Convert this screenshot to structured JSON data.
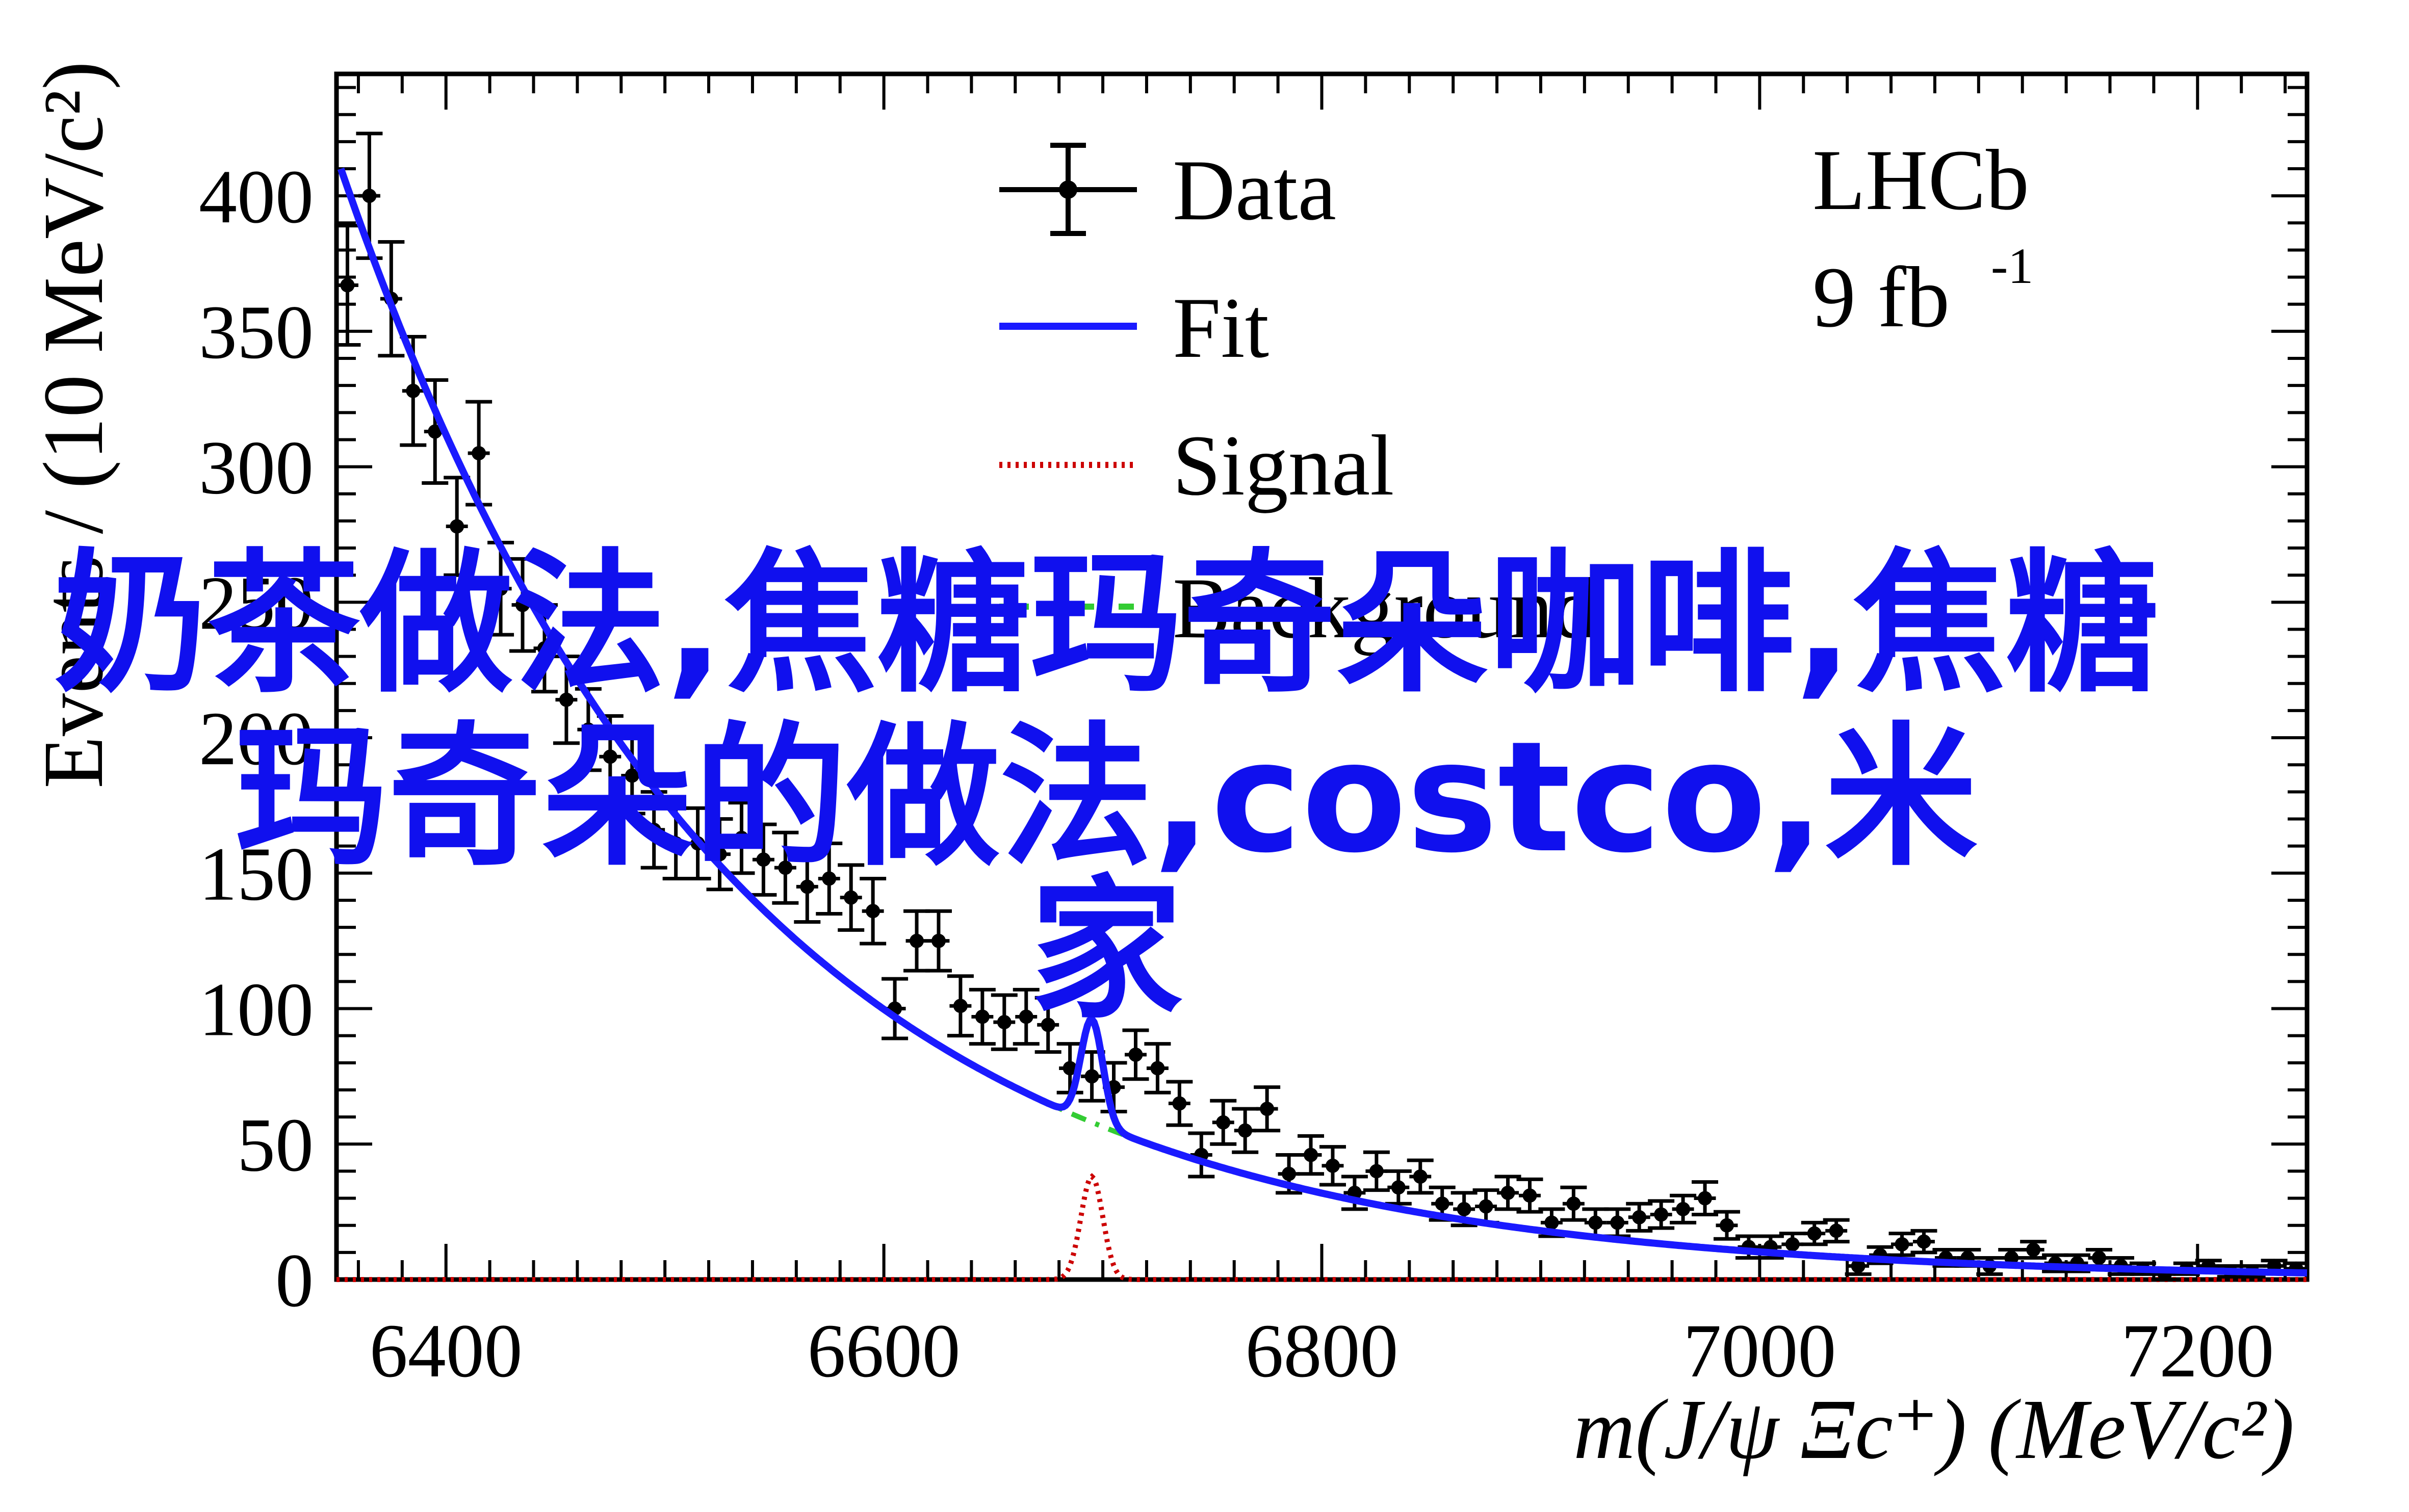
{
  "chart_data": {
    "type": "line",
    "title": "",
    "xlabel": "m(J/ψ Ξc⁺) (MeV/c²)",
    "ylabel": "Events / (10 MeV/c²)",
    "xlim": [
      6350,
      7250
    ],
    "ylim": [
      0,
      445
    ],
    "x_ticks": [
      6400,
      6600,
      6800,
      7000,
      7200
    ],
    "y_ticks": [
      0,
      50,
      100,
      150,
      200,
      250,
      300,
      350,
      400
    ],
    "grid": false,
    "legend": {
      "placement": "top-center",
      "entries": [
        "Data",
        "Fit",
        "Signal",
        "Background"
      ]
    },
    "annotations": [
      "LHCb",
      "9 fb",
      "-1"
    ],
    "colors": {
      "fit": "#1a1aff",
      "signal": "#cc0000",
      "background": "#33cc33",
      "data": "#000000",
      "overlay": "#1010ee"
    },
    "series": [
      {
        "name": "Data",
        "kind": "points",
        "x": [
          6355,
          6365,
          6375,
          6385,
          6395,
          6405,
          6415,
          6425,
          6435,
          6445,
          6455,
          6465,
          6475,
          6485,
          6495,
          6505,
          6515,
          6525,
          6535,
          6545,
          6555,
          6565,
          6575,
          6585,
          6595,
          6605,
          6615,
          6625,
          6635,
          6645,
          6655,
          6665,
          6675,
          6685,
          6695,
          6705,
          6715,
          6725,
          6735,
          6745,
          6755,
          6765,
          6775,
          6785,
          6795,
          6805,
          6815,
          6825,
          6835,
          6845,
          6855,
          6865,
          6875,
          6885,
          6895,
          6905,
          6915,
          6925,
          6935,
          6945,
          6955,
          6965,
          6975,
          6985,
          6995,
          7005,
          7015,
          7025,
          7035,
          7045,
          7055,
          7065,
          7075,
          7085,
          7095,
          7105,
          7115,
          7125,
          7135,
          7145,
          7155,
          7165,
          7175,
          7185,
          7195,
          7205,
          7215,
          7225,
          7235,
          7245
        ],
        "y": [
          367,
          400,
          362,
          328,
          313,
          278,
          305,
          255,
          249,
          233,
          214,
          203,
          193,
          186,
          166,
          161,
          161,
          157,
          163,
          155,
          152,
          145,
          148,
          141,
          136,
          100,
          125,
          125,
          101,
          97,
          95,
          97,
          94,
          78,
          75,
          71,
          83,
          78,
          65,
          46,
          58,
          55,
          63,
          39,
          46,
          42,
          32,
          40,
          34,
          38,
          28,
          26,
          27,
          32,
          31,
          21,
          28,
          21,
          21,
          23,
          24,
          26,
          30,
          20,
          12,
          12,
          13,
          17,
          18,
          5,
          9,
          13,
          14,
          8,
          8,
          5,
          8,
          11,
          6,
          6,
          8,
          5,
          4,
          2,
          4,
          5,
          3,
          3,
          5,
          4
        ],
        "err": [
          22,
          23,
          21,
          20,
          19,
          18,
          19,
          17,
          17,
          16,
          16,
          15,
          15,
          14,
          14,
          13,
          13,
          13,
          13,
          13,
          13,
          13,
          13,
          12,
          12,
          11,
          11,
          11,
          11,
          10,
          10,
          10,
          10,
          9,
          9,
          9,
          9,
          9,
          8,
          8,
          8,
          8,
          8,
          7,
          7,
          7,
          6,
          7,
          6,
          6,
          6,
          6,
          6,
          6,
          6,
          5,
          6,
          5,
          5,
          5,
          5,
          5,
          6,
          5,
          4,
          4,
          4,
          4,
          4,
          3,
          3,
          4,
          4,
          3,
          3,
          3,
          3,
          3,
          3,
          3,
          3,
          3,
          2,
          2,
          2,
          2,
          2,
          2,
          2,
          2
        ]
      },
      {
        "name": "Fit",
        "kind": "curve",
        "source": "background+signal"
      },
      {
        "name": "Signal",
        "kind": "gaussian",
        "mean": 6695,
        "sigma": 5,
        "amplitude": 38
      },
      {
        "name": "Background",
        "kind": "exponential",
        "A": 410,
        "x0": 6352,
        "slope": 0.0057
      }
    ]
  },
  "overlay": {
    "line1": "奶茶做法,焦糖玛奇朵咖啡,焦糖",
    "line2": "玛奇朵的做法,costco,米",
    "line3": "家"
  }
}
